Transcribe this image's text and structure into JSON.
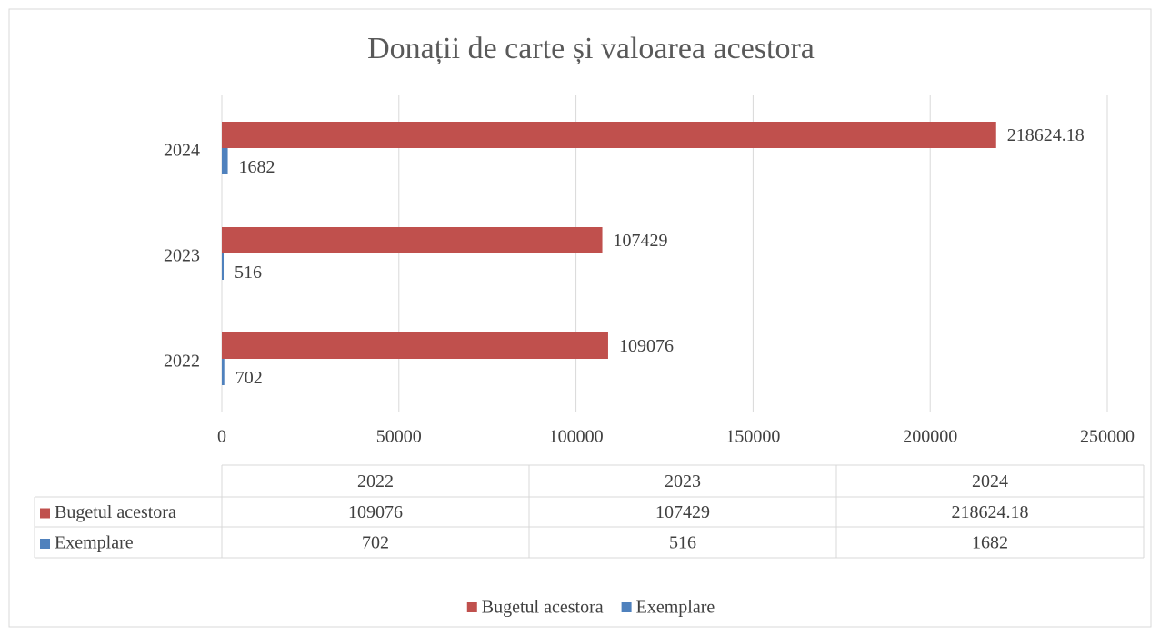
{
  "chart_data": {
    "type": "bar",
    "orientation": "horizontal",
    "title": "Donații de carte și valoarea acestora",
    "categories": [
      "2022",
      "2023",
      "2024"
    ],
    "series": [
      {
        "name": "Bugetul acestora",
        "color": "#c0504d",
        "values": [
          109076,
          107429,
          218624.18
        ]
      },
      {
        "name": "Exemplare",
        "color": "#4f81bd",
        "values": [
          702,
          516,
          1682
        ]
      }
    ],
    "xlim": [
      0,
      250000
    ],
    "xticks": [
      0,
      50000,
      100000,
      150000,
      200000,
      250000
    ],
    "grid": true,
    "data_table": true,
    "legend": "bottom"
  }
}
